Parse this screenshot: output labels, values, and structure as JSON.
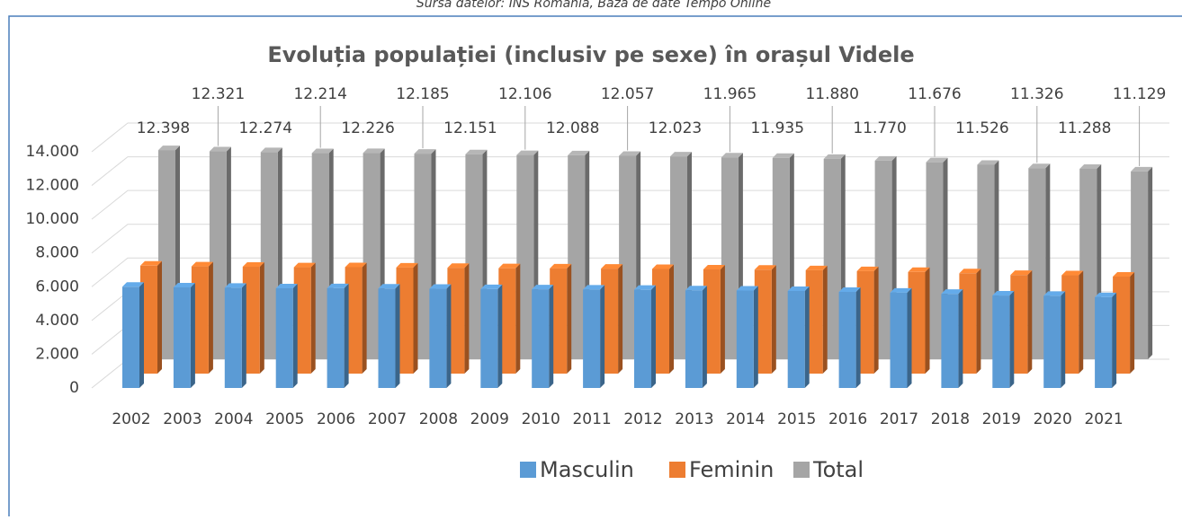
{
  "chart_data": {
    "type": "bar3d",
    "source": "Sursa datelor: INS România, Baza de date Tempo Online",
    "title": "Evoluția populației (inclusiv pe sexe) în orașul Videle",
    "categories": [
      "2002",
      "2003",
      "2004",
      "2005",
      "2006",
      "2007",
      "2008",
      "2009",
      "2010",
      "2011",
      "2012",
      "2013",
      "2014",
      "2015",
      "2016",
      "2017",
      "2018",
      "2019",
      "2020",
      "2021"
    ],
    "series": [
      {
        "name": "Masculin",
        "color": "#5b9bd5",
        "values": [
          6000,
          5965,
          5940,
          5910,
          5915,
          5895,
          5880,
          5860,
          5850,
          5835,
          5820,
          5790,
          5775,
          5750,
          5695,
          5650,
          5580,
          5480,
          5460,
          5380
        ]
      },
      {
        "name": "Feminin",
        "color": "#ed7d31",
        "values": [
          6398,
          6356,
          6334,
          6304,
          6311,
          6290,
          6271,
          6246,
          6238,
          6222,
          6203,
          6175,
          6160,
          6130,
          6075,
          6026,
          5946,
          5846,
          5828,
          5749
        ]
      },
      {
        "name": "Total",
        "color": "#a5a5a5",
        "values": [
          12398,
          12321,
          12274,
          12214,
          12226,
          12185,
          12151,
          12106,
          12088,
          12057,
          12023,
          11965,
          11935,
          11880,
          11770,
          11676,
          11526,
          11326,
          11288,
          11129
        ],
        "value_labels": [
          "12.398",
          "12.321",
          "12.274",
          "12.214",
          "12.226",
          "12.185",
          "12.151",
          "12.106",
          "12.088",
          "12.057",
          "12.023",
          "11.965",
          "11.935",
          "11.880",
          "11.770",
          "11.676",
          "11.526",
          "11.326",
          "11.288",
          "11.129"
        ]
      }
    ],
    "ylim": [
      0,
      14000
    ],
    "yticks": [
      0,
      {
        "value": 2000,
        "label": "2.000"
      },
      {
        "value": 4000,
        "label": "4.000"
      },
      {
        "value": 6000,
        "label": "6.000"
      },
      {
        "value": 8000,
        "label": "8.000"
      },
      {
        "value": 10000,
        "label": "10.000"
      },
      {
        "value": 12000,
        "label": "12.000"
      },
      {
        "value": 14000,
        "label": "14.000"
      }
    ],
    "grid": true,
    "legend": "bottom"
  }
}
